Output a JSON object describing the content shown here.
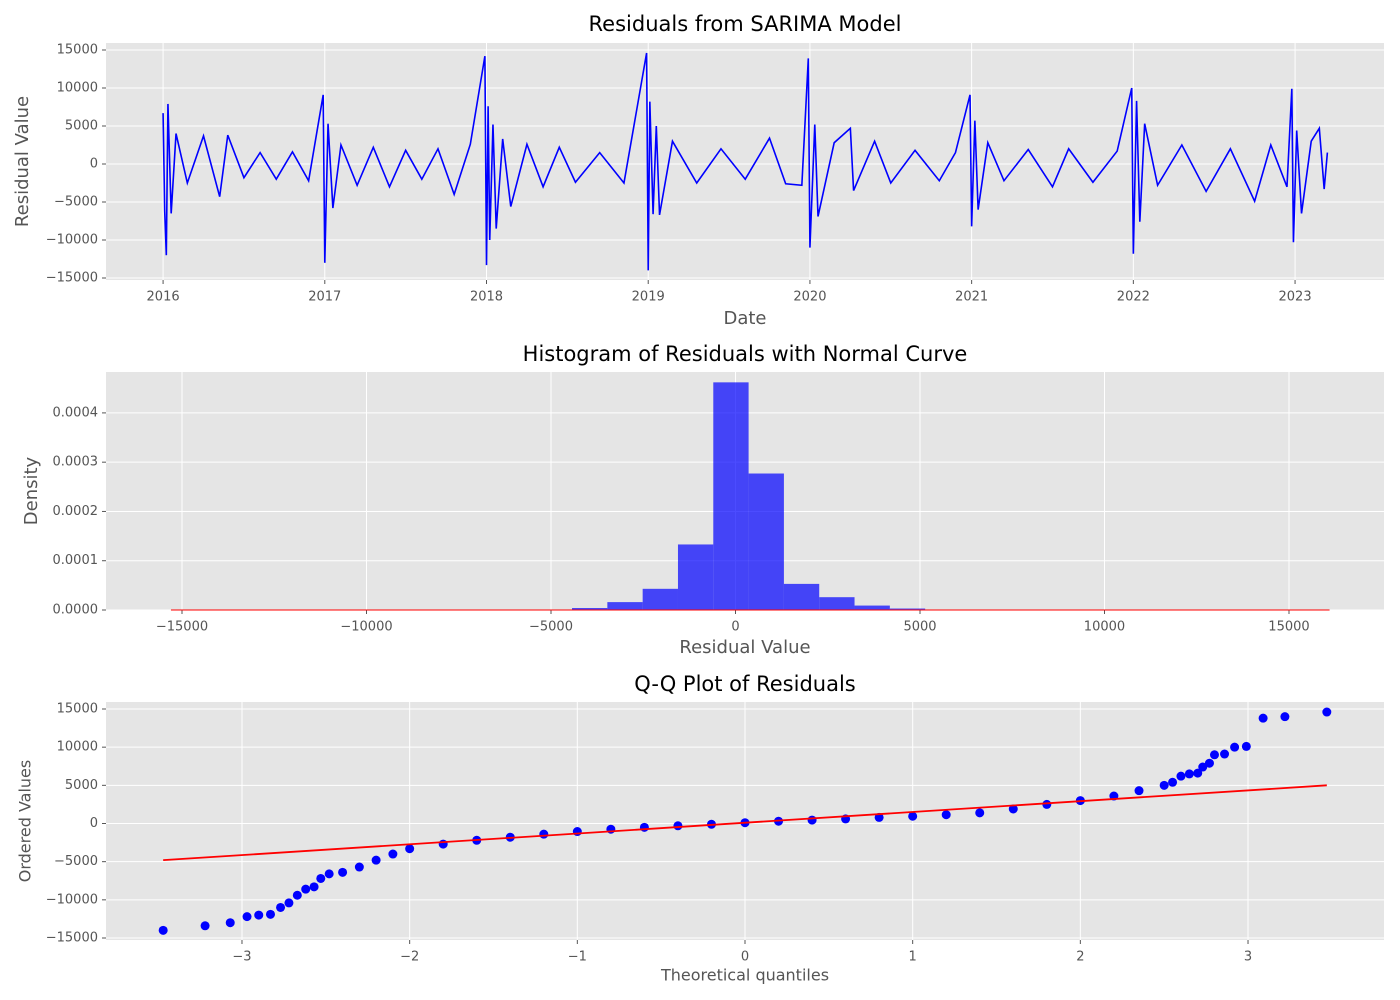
{
  "chart_data": [
    {
      "type": "line",
      "title": "Residuals from SARIMA Model",
      "x_label": "Date",
      "y_label": "Residual Value",
      "color": "#0000ff",
      "grid": true,
      "x": [
        2016.0,
        2016.01,
        2016.02,
        2016.03,
        2016.05,
        2016.08,
        2016.15,
        2016.25,
        2016.35,
        2016.4,
        2016.5,
        2016.6,
        2016.7,
        2016.8,
        2016.9,
        2016.99,
        2017.0,
        2017.02,
        2017.05,
        2017.1,
        2017.2,
        2017.3,
        2017.4,
        2017.5,
        2017.6,
        2017.7,
        2017.8,
        2017.9,
        2017.99,
        2018.0,
        2018.01,
        2018.02,
        2018.04,
        2018.06,
        2018.1,
        2018.15,
        2018.25,
        2018.35,
        2018.45,
        2018.55,
        2018.7,
        2018.85,
        2018.99,
        2019.0,
        2019.01,
        2019.03,
        2019.05,
        2019.07,
        2019.15,
        2019.3,
        2019.45,
        2019.6,
        2019.75,
        2019.85,
        2019.95,
        2019.99,
        2020.0,
        2020.03,
        2020.05,
        2020.15,
        2020.25,
        2020.27,
        2020.4,
        2020.5,
        2020.65,
        2020.8,
        2020.9,
        2020.99,
        2021.0,
        2021.02,
        2021.04,
        2021.1,
        2021.2,
        2021.35,
        2021.5,
        2021.6,
        2021.75,
        2021.9,
        2021.99,
        2022.0,
        2022.02,
        2022.04,
        2022.07,
        2022.15,
        2022.3,
        2022.45,
        2022.6,
        2022.75,
        2022.85,
        2022.95,
        2022.98,
        2022.99,
        2023.01,
        2023.04,
        2023.1,
        2023.15,
        2023.18,
        2023.2
      ],
      "values": [
        6700,
        -6200,
        -12000,
        7900,
        -6500,
        4000,
        -2500,
        3700,
        -4300,
        3800,
        -1800,
        1500,
        -2000,
        1600,
        -2200,
        9100,
        -13000,
        5300,
        -5800,
        2500,
        -2800,
        2200,
        -3000,
        1800,
        -2000,
        2000,
        -4000,
        2600,
        14200,
        -13300,
        7600,
        -10000,
        5200,
        -8500,
        3300,
        -5600,
        2600,
        -3000,
        2200,
        -2400,
        1500,
        -2500,
        14600,
        -14000,
        8200,
        -6600,
        5000,
        -6700,
        3000,
        -2500,
        2000,
        -2000,
        3400,
        -2600,
        -2800,
        13900,
        -11000,
        5200,
        -6900,
        2800,
        4700,
        -3500,
        3000,
        -2500,
        1800,
        -2200,
        1500,
        9100,
        -8200,
        5700,
        -6000,
        2800,
        -2200,
        1900,
        -3000,
        2000,
        -2400,
        1700,
        10000,
        -11800,
        8300,
        -7600,
        5300,
        -2800,
        2500,
        -3600,
        2000,
        -4900,
        2500,
        -3000,
        9900,
        -10300,
        4400,
        -6500,
        3000,
        4700,
        -3300,
        1500
      ],
      "xlim": [
        2015.647,
        2023.55
      ],
      "xticks": [
        2016,
        2017,
        2018,
        2019,
        2020,
        2021,
        2022,
        2023
      ],
      "ylim": [
        -15263,
        15921
      ],
      "yticks": [
        {
          "value": -15000,
          "label": "−15000"
        },
        {
          "value": -10000,
          "label": "−10000"
        },
        {
          "value": -5000,
          "label": "−5000"
        },
        0,
        5000,
        10000,
        15000
      ]
    },
    {
      "type": "histogram",
      "title": "Histogram of Residuals with Normal Curve",
      "x_label": "Residual Value",
      "y_label": "Density",
      "color": "#0000ff",
      "grid": true,
      "bins": [
        -14000,
        -13043,
        -12086,
        -11129,
        -10172,
        -9215,
        -8258,
        -7301,
        -6344,
        -5387,
        -4430,
        -3473,
        -2516,
        -1559,
        -602,
        355,
        1312,
        2269,
        3226,
        4183,
        5140,
        6097,
        7054,
        8011,
        8968,
        9925,
        10882,
        11839,
        12796,
        13753,
        14710
      ],
      "counts": [
        0,
        0,
        0,
        0,
        0,
        0,
        0,
        0,
        0,
        0,
        4e-06,
        1.6e-05,
        4.3e-05,
        0.000133,
        0.000462,
        0.000277,
        5.3e-05,
        2.6e-05,
        9e-06,
        3e-06,
        0,
        0,
        0,
        0,
        0,
        0,
        0,
        0,
        0,
        0
      ],
      "curve": {
        "color": "#ff0000",
        "x": [
          -15300,
          0,
          16100
        ],
        "values": [
          0,
          0,
          0
        ]
      },
      "xlim": [
        -17060,
        17575
      ],
      "xticks": [
        {
          "value": -15000,
          "label": "−15000"
        },
        {
          "value": -10000,
          "label": "−10000"
        },
        {
          "value": -5000,
          "label": "−5000"
        },
        0,
        5000,
        10000,
        15000
      ],
      "ylim": [
        0,
        0.000483
      ],
      "yticks": [
        {
          "value": 0,
          "label": "0.0000"
        },
        {
          "value": 0.0001,
          "label": "0.0001"
        },
        {
          "value": 0.0002,
          "label": "0.0002"
        },
        {
          "value": 0.0003,
          "label": "0.0003"
        },
        {
          "value": 0.0004,
          "label": "0.0004"
        }
      ]
    },
    {
      "type": "scatter",
      "title": "Q-Q Plot of Residuals",
      "x_label": "Theoretical quantiles",
      "y_label": "Ordered Values",
      "color": "#0000ff",
      "grid": true,
      "x": [
        -3.47,
        -3.22,
        -3.07,
        -2.97,
        -2.9,
        -2.83,
        -2.77,
        -2.72,
        -2.67,
        -2.62,
        -2.57,
        -2.53,
        -2.48,
        -2.4,
        -2.3,
        -2.2,
        -2.1,
        -2.0,
        -1.8,
        -1.6,
        -1.4,
        -1.2,
        -1.0,
        -0.8,
        -0.6,
        -0.4,
        -0.2,
        0,
        0.2,
        0.4,
        0.6,
        0.8,
        1.0,
        1.2,
        1.4,
        1.6,
        1.8,
        2.0,
        2.2,
        2.35,
        2.5,
        2.55,
        2.6,
        2.65,
        2.7,
        2.73,
        2.77,
        2.8,
        2.86,
        2.92,
        2.99,
        3.09,
        3.22,
        3.47
      ],
      "values": [
        -14000,
        -13400,
        -13000,
        -12200,
        -12000,
        -11900,
        -11000,
        -10400,
        -9400,
        -8600,
        -8300,
        -7200,
        -6600,
        -6400,
        -5700,
        -4800,
        -4000,
        -3300,
        -2700,
        -2200,
        -1800,
        -1400,
        -1050,
        -750,
        -500,
        -300,
        -100,
        100,
        300,
        450,
        600,
        800,
        950,
        1150,
        1400,
        1900,
        2500,
        3000,
        3600,
        4300,
        5000,
        5400,
        6200,
        6500,
        6600,
        7400,
        7900,
        9000,
        9100,
        10000,
        10100,
        13800,
        14000,
        14600
      ],
      "fit_line": {
        "color": "#ff0000",
        "x": [
          -3.47,
          3.47
        ],
        "values": [
          -4800,
          5000
        ]
      },
      "xlim": [
        -3.811,
        3.811
      ],
      "xticks": [
        {
          "value": -3,
          "label": "−3"
        },
        {
          "value": -2,
          "label": "−2"
        },
        {
          "value": -1,
          "label": "−1"
        },
        0,
        1,
        2,
        3
      ],
      "ylim": [
        -15262,
        15917
      ],
      "yticks": [
        {
          "value": -15000,
          "label": "−15000"
        },
        {
          "value": -10000,
          "label": "−10000"
        },
        {
          "value": -5000,
          "label": "−5000"
        },
        0,
        5000,
        10000,
        15000
      ]
    }
  ]
}
